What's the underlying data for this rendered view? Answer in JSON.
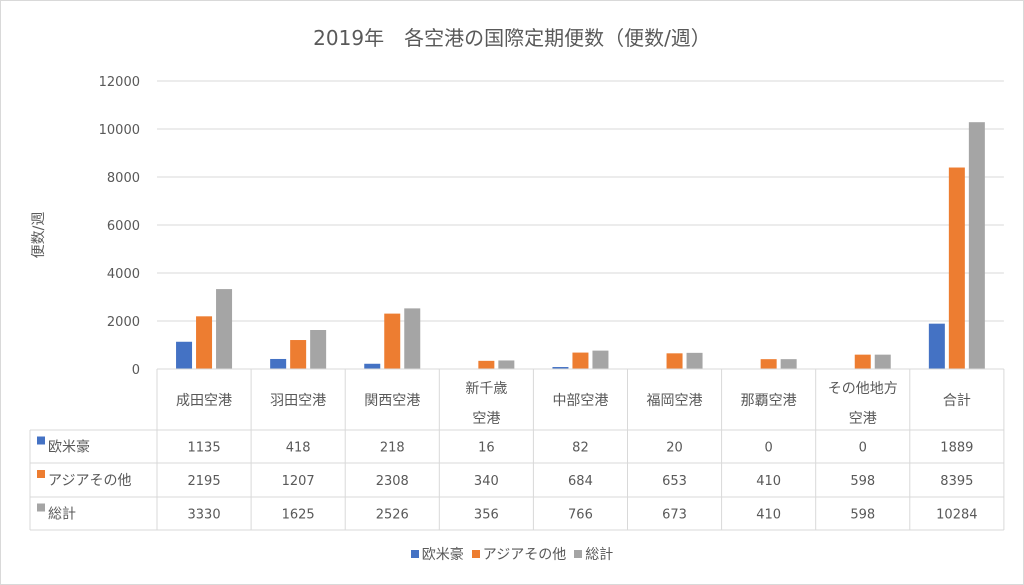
{
  "chart_data": {
    "type": "bar",
    "title": "2019年　各空港の国際定期便数（便数/週）",
    "ylabel": "便数/週",
    "xlabel": "",
    "ylim": [
      0,
      12000
    ],
    "yticks": [
      "0",
      "2000",
      "4000",
      "6000",
      "8000",
      "10000",
      "12000"
    ],
    "grid": true,
    "legend": "bottom",
    "data_table": true,
    "categories": [
      "成田空港",
      "羽田空港",
      "関西空港",
      "新千歳空港",
      "中部空港",
      "福岡空港",
      "那覇空港",
      "その他地方空港",
      "合計"
    ],
    "series": [
      {
        "name": "欧米豪",
        "color": "#4472c4",
        "values": [
          1135,
          418,
          218,
          16,
          82,
          20,
          0,
          0,
          1889
        ]
      },
      {
        "name": "アジアその他",
        "color": "#ed7d31",
        "values": [
          2195,
          1207,
          2308,
          340,
          684,
          653,
          410,
          598,
          8395
        ]
      },
      {
        "name": "総計",
        "color": "#a5a5a5",
        "values": [
          3330,
          1625,
          2526,
          356,
          766,
          673,
          410,
          598,
          10284
        ]
      }
    ]
  }
}
